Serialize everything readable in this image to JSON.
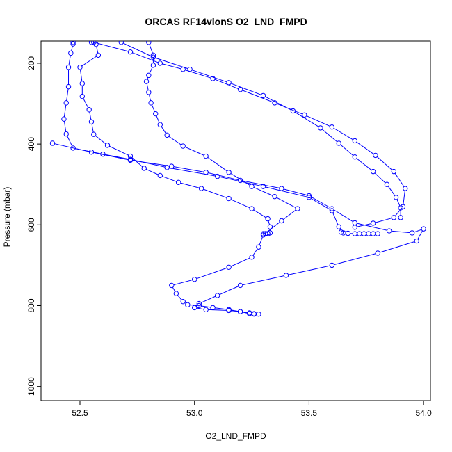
{
  "chart_data": {
    "type": "line",
    "title": "ORCAS RF14vlonS O2_LND_FMPD",
    "xlabel": "O2_LND_FMPD",
    "ylabel": "Pressure (mbar)",
    "xlim": [
      52.33,
      54.03
    ],
    "ylim": [
      1035,
      145
    ],
    "y_reversed": true,
    "x_ticks": [
      52.5,
      53.0,
      53.5,
      54.0
    ],
    "x_tick_labels": [
      "52.5",
      "53.0",
      "53.5",
      "54.0"
    ],
    "y_ticks": [
      200,
      400,
      600,
      800,
      1000
    ],
    "y_tick_labels": [
      "200",
      "400",
      "600",
      "800",
      "1000"
    ],
    "grid": false,
    "legend": "none",
    "series_color": "#0000ff",
    "marker": "open-circle",
    "series": [
      {
        "points": [
          [
            52.55,
            148
          ],
          [
            52.57,
            153
          ],
          [
            52.58,
            180
          ],
          [
            52.5,
            210
          ],
          [
            52.51,
            250
          ],
          [
            52.51,
            282
          ],
          [
            52.54,
            315
          ],
          [
            52.55,
            345
          ],
          [
            52.56,
            376
          ],
          [
            52.62,
            403
          ],
          [
            52.72,
            430
          ],
          [
            52.78,
            460
          ],
          [
            52.85,
            478
          ],
          [
            52.93,
            495
          ],
          [
            53.03,
            510
          ],
          [
            53.15,
            535
          ],
          [
            53.25,
            560
          ],
          [
            53.32,
            585
          ],
          [
            53.33,
            605
          ],
          [
            53.33,
            620
          ],
          [
            53.32,
            622
          ],
          [
            53.31,
            622
          ],
          [
            53.3,
            622
          ],
          [
            53.31,
            622
          ],
          [
            53.32,
            622
          ]
        ]
      },
      {
        "points": [
          [
            52.47,
            148
          ],
          [
            52.47,
            152
          ],
          [
            52.46,
            175
          ],
          [
            52.45,
            210
          ],
          [
            52.45,
            258
          ],
          [
            52.44,
            298
          ],
          [
            52.43,
            338
          ],
          [
            52.44,
            375
          ],
          [
            52.47,
            410
          ],
          [
            52.6,
            425
          ],
          [
            52.72,
            438
          ],
          [
            52.88,
            458
          ],
          [
            53.1,
            480
          ],
          [
            53.3,
            505
          ],
          [
            53.5,
            532
          ],
          [
            53.6,
            565
          ],
          [
            53.63,
            605
          ],
          [
            53.64,
            618
          ],
          [
            53.65,
            620
          ],
          [
            53.67,
            621
          ],
          [
            53.7,
            622
          ],
          [
            53.72,
            622
          ],
          [
            53.74,
            622
          ],
          [
            53.76,
            622
          ],
          [
            53.78,
            622
          ],
          [
            53.8,
            622
          ]
        ]
      },
      {
        "points": [
          [
            52.38,
            398
          ],
          [
            52.55,
            420
          ],
          [
            52.72,
            440
          ],
          [
            52.9,
            455
          ],
          [
            53.05,
            470
          ],
          [
            53.2,
            490
          ],
          [
            53.38,
            510
          ],
          [
            53.5,
            528
          ],
          [
            53.6,
            560
          ],
          [
            53.7,
            595
          ],
          [
            53.85,
            615
          ],
          [
            53.95,
            620
          ],
          [
            54.0,
            610
          ],
          [
            53.97,
            640
          ],
          [
            53.8,
            670
          ],
          [
            53.6,
            700
          ],
          [
            53.4,
            725
          ],
          [
            53.2,
            750
          ],
          [
            53.1,
            775
          ],
          [
            53.02,
            795
          ],
          [
            53.0,
            805
          ],
          [
            53.05,
            810
          ],
          [
            53.15,
            812
          ],
          [
            53.2,
            815
          ],
          [
            53.24,
            818
          ],
          [
            53.26,
            820
          ],
          [
            53.28,
            821
          ]
        ]
      },
      {
        "points": [
          [
            52.8,
            148
          ],
          [
            52.82,
            180
          ],
          [
            52.82,
            205
          ],
          [
            52.8,
            230
          ],
          [
            52.79,
            245
          ],
          [
            52.8,
            272
          ],
          [
            52.81,
            298
          ],
          [
            52.83,
            325
          ],
          [
            52.85,
            352
          ],
          [
            52.88,
            378
          ],
          [
            52.95,
            405
          ],
          [
            53.05,
            430
          ],
          [
            53.15,
            470
          ],
          [
            53.25,
            505
          ],
          [
            53.35,
            530
          ],
          [
            53.45,
            560
          ],
          [
            53.38,
            590
          ],
          [
            53.3,
            625
          ],
          [
            53.28,
            655
          ],
          [
            53.25,
            680
          ],
          [
            53.15,
            705
          ],
          [
            53.0,
            735
          ],
          [
            52.9,
            750
          ],
          [
            52.92,
            770
          ],
          [
            52.95,
            790
          ],
          [
            52.97,
            798
          ],
          [
            53.02,
            800
          ],
          [
            53.08,
            805
          ],
          [
            53.15,
            810
          ],
          [
            53.2,
            815
          ],
          [
            53.24,
            820
          ],
          [
            53.26,
            821
          ]
        ]
      },
      {
        "points": [
          [
            52.56,
            148
          ],
          [
            52.72,
            172
          ],
          [
            52.85,
            200
          ],
          [
            52.95,
            215
          ],
          [
            53.08,
            238
          ],
          [
            53.2,
            265
          ],
          [
            53.35,
            298
          ],
          [
            53.48,
            328
          ],
          [
            53.6,
            358
          ],
          [
            53.7,
            392
          ],
          [
            53.79,
            428
          ],
          [
            53.87,
            468
          ],
          [
            53.92,
            510
          ],
          [
            53.91,
            555
          ],
          [
            53.87,
            582
          ],
          [
            53.78,
            596
          ],
          [
            53.7,
            606
          ]
        ]
      },
      {
        "points": [
          [
            52.68,
            148
          ],
          [
            52.82,
            185
          ],
          [
            52.98,
            215
          ],
          [
            53.15,
            248
          ],
          [
            53.3,
            280
          ],
          [
            53.43,
            318
          ],
          [
            53.55,
            360
          ],
          [
            53.63,
            398
          ],
          [
            53.7,
            432
          ],
          [
            53.78,
            468
          ],
          [
            53.84,
            500
          ],
          [
            53.88,
            532
          ],
          [
            53.9,
            558
          ],
          [
            53.9,
            582
          ]
        ]
      }
    ]
  }
}
